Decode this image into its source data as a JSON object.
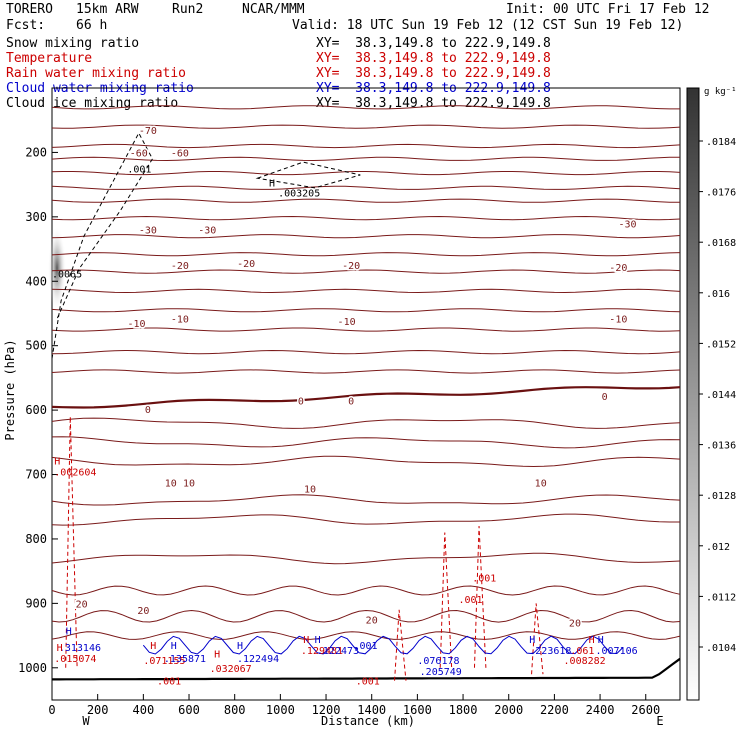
{
  "header": {
    "model": "TORERO",
    "resolution": "15km ARW",
    "run": "Run2",
    "center": "NCAR/MMM",
    "init": "Init: 00 UTC Fri 17 Feb 12",
    "fcst_label": "Fcst:",
    "fcst_value": "66 h",
    "valid": "Valid: 18 UTC Sun 19 Feb 12 (12 CST Sun 19 Feb 12)"
  },
  "legend": [
    {
      "name": "Snow mixing ratio",
      "xy": "XY=  38.3,149.8 to 222.9,149.8",
      "color": "#000000"
    },
    {
      "name": "Temperature",
      "xy": "XY=  38.3,149.8 to 222.9,149.8",
      "color": "#cc0000"
    },
    {
      "name": "Rain water mixing ratio",
      "xy": "XY=  38.3,149.8 to 222.9,149.8",
      "color": "#cc0000"
    },
    {
      "name": "Cloud water mixing ratio",
      "xy": "XY=  38.3,149.8 to 222.9,149.8",
      "color": "#0000cc"
    },
    {
      "name": "Cloud ice mixing ratio",
      "xy": "XY=  38.3,149.8 to 222.9,149.8",
      "color": "#000000"
    }
  ],
  "chart_data": {
    "type": "cross-section",
    "xlabel": "Distance (km)",
    "ylabel": "Pressure (hPa)",
    "xlim": [
      0,
      2750
    ],
    "ylim": [
      1050,
      100
    ],
    "x_ticks": [
      "0",
      "200",
      "400",
      "600",
      "800",
      "1000",
      "1200",
      "1400",
      "1600",
      "1800",
      "2000",
      "2200",
      "2400",
      "2600"
    ],
    "y_ticks": [
      "200",
      "300",
      "400",
      "500",
      "600",
      "700",
      "800",
      "900",
      "1000"
    ],
    "x_tick_values": [
      0,
      200,
      400,
      600,
      800,
      1000,
      1200,
      1400,
      1600,
      1800,
      2000,
      2200,
      2400,
      2600
    ],
    "y_tick_values": [
      200,
      300,
      400,
      500,
      600,
      700,
      800,
      900,
      1000
    ],
    "x_ends": {
      "left": "W",
      "right": "E"
    },
    "colorbar": {
      "unit": "g kg⁻¹",
      "labels": [
        ".0184",
        ".0176",
        ".0168",
        ".016",
        ".0152",
        ".0144",
        ".0136",
        ".0128",
        ".012",
        ".0112",
        ".0104"
      ]
    },
    "temperature_labels": [
      {
        "text": "-70",
        "x": 420,
        "p": 165
      },
      {
        "text": "-60",
        "x": 380,
        "p": 200
      },
      {
        "text": "-60",
        "x": 560,
        "p": 200
      },
      {
        "text": "-30",
        "x": 420,
        "p": 320
      },
      {
        "text": "-30",
        "x": 680,
        "p": 320
      },
      {
        "text": "-30",
        "x": 2520,
        "p": 310
      },
      {
        "text": "-20",
        "x": 560,
        "p": 375
      },
      {
        "text": "-20",
        "x": 850,
        "p": 372
      },
      {
        "text": "-20",
        "x": 1310,
        "p": 375
      },
      {
        "text": "-20",
        "x": 2480,
        "p": 378
      },
      {
        "text": "-10",
        "x": 370,
        "p": 465
      },
      {
        "text": "-10",
        "x": 560,
        "p": 458
      },
      {
        "text": "-10",
        "x": 1290,
        "p": 462
      },
      {
        "text": "-10",
        "x": 2480,
        "p": 458
      },
      {
        "text": "0",
        "x": 420,
        "p": 598
      },
      {
        "text": "0",
        "x": 1090,
        "p": 585
      },
      {
        "text": "0",
        "x": 1310,
        "p": 585
      },
      {
        "text": "0",
        "x": 2420,
        "p": 578
      },
      {
        "text": "10",
        "x": 520,
        "p": 712
      },
      {
        "text": "10",
        "x": 600,
        "p": 712
      },
      {
        "text": "10",
        "x": 1130,
        "p": 722
      },
      {
        "text": "10",
        "x": 2140,
        "p": 712
      },
      {
        "text": "20",
        "x": 130,
        "p": 900
      },
      {
        "text": "20",
        "x": 400,
        "p": 910
      },
      {
        "text": "20",
        "x": 1400,
        "p": 925
      },
      {
        "text": "20",
        "x": 2290,
        "p": 930
      }
    ],
    "annotations": [
      {
        "text": ".001",
        "x": 330,
        "p": 225,
        "color": "#000000"
      },
      {
        "text": "H",
        "x": 950,
        "p": 247,
        "color": "#000000"
      },
      {
        "text": ".003205",
        "x": 990,
        "p": 262,
        "color": "#000000"
      },
      {
        "text": ".0065",
        "x": 0,
        "p": 388,
        "color": "#000000"
      },
      {
        "text": "H",
        "x": 10,
        "p": 678,
        "color": "#cc0000"
      },
      {
        "text": ".002604",
        "x": 10,
        "p": 695,
        "color": "#cc0000"
      },
      {
        "text": ".001",
        "x": 1840,
        "p": 860,
        "color": "#cc0000"
      },
      {
        "text": ".001",
        "x": 1780,
        "p": 893,
        "color": "#cc0000"
      },
      {
        "text": "H",
        "x": 60,
        "p": 942,
        "color": "#0000cc"
      },
      {
        "text": ".313146",
        "x": 30,
        "p": 968,
        "color": "#0000cc"
      },
      {
        "text": "H",
        "x": 20,
        "p": 968,
        "color": "#cc0000"
      },
      {
        "text": ".015074",
        "x": 10,
        "p": 985,
        "color": "#cc0000"
      },
      {
        "text": "H",
        "x": 430,
        "p": 965,
        "color": "#cc0000"
      },
      {
        "text": "H",
        "x": 520,
        "p": 965,
        "color": "#0000cc"
      },
      {
        "text": ".071155",
        "x": 400,
        "p": 988,
        "color": "#cc0000"
      },
      {
        "text": ".135871",
        "x": 490,
        "p": 985,
        "color": "#0000cc"
      },
      {
        "text": "H",
        "x": 710,
        "p": 978,
        "color": "#cc0000"
      },
      {
        "text": "H",
        "x": 810,
        "p": 965,
        "color": "#0000cc"
      },
      {
        "text": ".032067",
        "x": 690,
        "p": 1000,
        "color": "#cc0000"
      },
      {
        "text": ".122494",
        "x": 810,
        "p": 985,
        "color": "#0000cc"
      },
      {
        "text": "H",
        "x": 1100,
        "p": 955,
        "color": "#cc0000"
      },
      {
        "text": "H",
        "x": 1150,
        "p": 955,
        "color": "#0000cc"
      },
      {
        "text": ".129481",
        "x": 1090,
        "p": 972,
        "color": "#cc0000"
      },
      {
        "text": ".122473",
        "x": 1160,
        "p": 972,
        "color": "#0000cc"
      },
      {
        "text": ".001",
        "x": 1320,
        "p": 965,
        "color": "#0000cc"
      },
      {
        "text": ".076178",
        "x": 1600,
        "p": 988,
        "color": "#0000cc"
      },
      {
        "text": ".205749",
        "x": 1610,
        "p": 1005,
        "color": "#0000cc"
      },
      {
        "text": "H",
        "x": 2090,
        "p": 955,
        "color": "#0000cc"
      },
      {
        "text": ".223618",
        "x": 2090,
        "p": 972,
        "color": "#0000cc"
      },
      {
        "text": ".061",
        "x": 2270,
        "p": 972,
        "color": "#cc0000"
      },
      {
        "text": "H",
        "x": 2350,
        "p": 955,
        "color": "#cc0000"
      },
      {
        "text": "H",
        "x": 2390,
        "p": 955,
        "color": "#0000cc"
      },
      {
        "text": ".007106",
        "x": 2380,
        "p": 972,
        "color": "#0000cc"
      },
      {
        "text": ".008282",
        "x": 2240,
        "p": 988,
        "color": "#cc0000"
      },
      {
        "text": ".001",
        "x": 1330,
        "p": 1020,
        "color": "#cc0000"
      },
      {
        "text": ".001",
        "x": 460,
        "p": 1020,
        "color": "#cc0000"
      }
    ]
  }
}
